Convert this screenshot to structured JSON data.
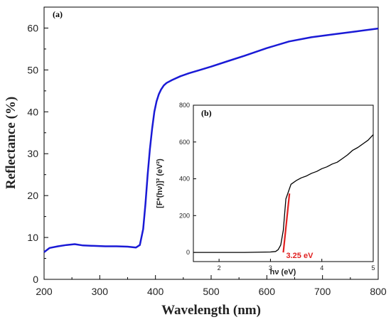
{
  "chart_data": [
    {
      "type": "line",
      "panel_label": "(a)",
      "xlabel": "Wavelength (nm)",
      "ylabel": "Reflectance (%)",
      "xlim": [
        200,
        800
      ],
      "ylim": [
        0,
        65
      ],
      "xticks": [
        200,
        300,
        400,
        500,
        600,
        700,
        800
      ],
      "yticks": [
        0,
        10,
        20,
        30,
        40,
        50,
        60
      ],
      "grid": false,
      "series": [
        {
          "color": "#1a1ad6",
          "x": [
            200,
            210,
            225,
            240,
            255,
            270,
            290,
            310,
            330,
            350,
            365,
            372,
            378,
            382,
            386,
            390,
            394,
            398,
            402,
            406,
            410,
            415,
            420,
            430,
            445,
            460,
            480,
            500,
            530,
            560,
            600,
            640,
            680,
            720,
            760,
            800
          ],
          "y": [
            6.5,
            7.5,
            7.9,
            8.2,
            8.4,
            8.1,
            8.0,
            7.9,
            7.9,
            7.8,
            7.6,
            8.2,
            12.0,
            18.0,
            25.0,
            31.0,
            36.0,
            40.0,
            42.5,
            44.2,
            45.3,
            46.3,
            46.9,
            47.6,
            48.5,
            49.2,
            50.0,
            50.8,
            52.1,
            53.4,
            55.2,
            56.8,
            57.8,
            58.5,
            59.2,
            59.9
          ]
        }
      ]
    },
    {
      "type": "line",
      "panel_label": "(b)",
      "xlabel": "hν (eV)",
      "ylabel": "[F*(hν)]² (eV²)",
      "xlim": [
        1.5,
        5
      ],
      "ylim": [
        -50,
        800
      ],
      "xticks": [
        2,
        3,
        4,
        5
      ],
      "yticks": [
        0,
        200,
        400,
        600,
        800
      ],
      "grid": false,
      "series": [
        {
          "color": "#000000",
          "x": [
            1.5,
            2.0,
            2.5,
            3.0,
            3.1,
            3.15,
            3.2,
            3.25,
            3.3,
            3.35,
            3.4,
            3.5,
            3.6,
            3.7,
            3.8,
            3.9,
            4.0,
            4.1,
            4.2,
            4.3,
            4.4,
            4.5,
            4.6,
            4.7,
            4.8,
            4.9,
            5.0
          ],
          "y": [
            0,
            0,
            0,
            2,
            5,
            15,
            40,
            120,
            290,
            330,
            370,
            390,
            405,
            415,
            430,
            440,
            455,
            465,
            480,
            490,
            510,
            530,
            555,
            570,
            590,
            610,
            640
          ]
        },
        {
          "color": "#e02020",
          "x": [
            3.25,
            3.37
          ],
          "y": [
            0,
            320
          ]
        }
      ],
      "annotations": [
        {
          "text": "3.25 eV",
          "x": 3.25,
          "y": 0,
          "color": "#e02020"
        }
      ]
    }
  ]
}
